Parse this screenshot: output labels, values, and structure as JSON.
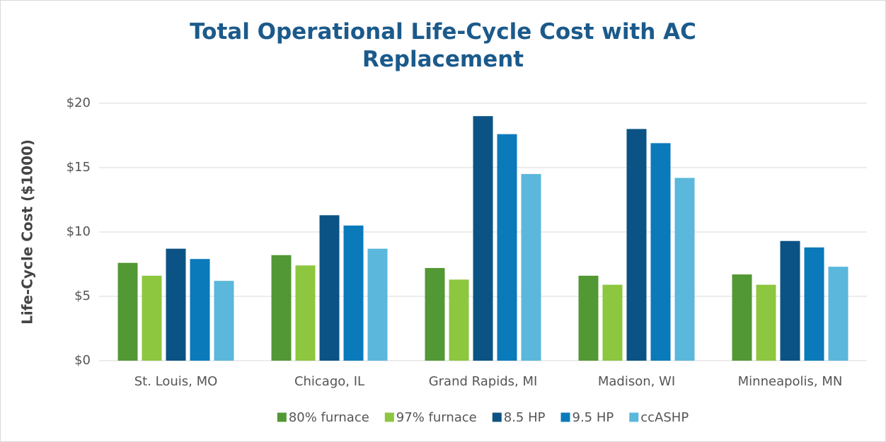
{
  "chart_data": {
    "type": "bar",
    "title": "Total Operational Life-Cycle Cost with AC Replacement",
    "y_label": "Life-Cycle Cost ($1000)",
    "categories": [
      "St. Louis, MO",
      "Chicago, IL",
      "Grand Rapids, MI",
      "Madison, WI",
      "Minneapolis, MN"
    ],
    "series": [
      {
        "name": "80% furnace",
        "color": "#529834",
        "values": [
          7.6,
          8.2,
          7.2,
          6.6,
          6.7
        ]
      },
      {
        "name": "97% furnace",
        "color": "#8dc63f",
        "values": [
          6.6,
          7.4,
          6.3,
          5.9,
          5.9
        ]
      },
      {
        "name": "8.5 HP",
        "color": "#0b5384",
        "values": [
          8.7,
          11.3,
          19.0,
          18.0,
          9.3
        ]
      },
      {
        "name": "9.5 HP",
        "color": "#0a7abb",
        "values": [
          7.9,
          10.5,
          17.6,
          16.9,
          8.8
        ]
      },
      {
        "name": "ccASHP",
        "color": "#5bb7db",
        "values": [
          6.2,
          8.7,
          14.5,
          14.2,
          7.3
        ]
      }
    ],
    "ylim": [
      0,
      20
    ],
    "yticks": [
      {
        "value": 0,
        "label": "$0"
      },
      {
        "value": 5,
        "label": "$5"
      },
      {
        "value": 10,
        "label": "$10"
      },
      {
        "value": 15,
        "label": "$15"
      },
      {
        "value": 20,
        "label": "$20"
      }
    ],
    "grid": true,
    "legend": "bottom"
  }
}
